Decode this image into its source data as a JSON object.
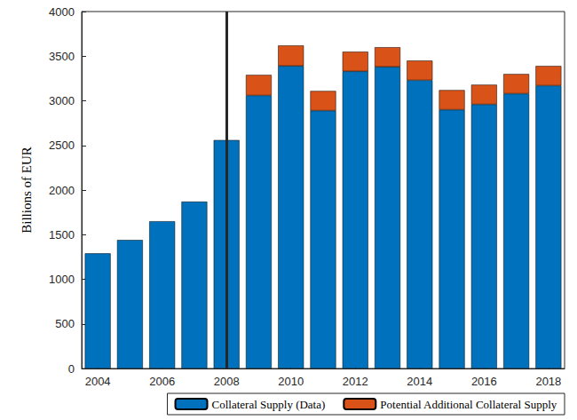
{
  "chart_data": {
    "type": "bar",
    "stacked": true,
    "ylabel": "Billions of EUR",
    "categories": [
      "2004",
      null,
      "2006",
      null,
      "2008",
      null,
      "2010",
      null,
      "2012",
      null,
      "2014",
      null,
      "2016",
      null,
      "2018"
    ],
    "series": [
      {
        "name": "Collateral Supply (Data)",
        "color": "#0072BD",
        "values": [
          1290,
          1440,
          1650,
          1870,
          2560,
          3060,
          3390,
          2890,
          3330,
          3380,
          3230,
          2900,
          2960,
          3080,
          3170
        ]
      },
      {
        "name": "Potential Additional Collateral Supply",
        "color": "#D95319",
        "values": [
          null,
          null,
          null,
          null,
          null,
          230,
          230,
          220,
          220,
          220,
          220,
          220,
          220,
          220,
          220
        ]
      }
    ],
    "vertical_line": "2008",
    "ylim": [
      0,
      4000
    ],
    "yticks": [
      0,
      500,
      1000,
      1500,
      2000,
      2500,
      3000,
      3500,
      4000
    ],
    "grid": false,
    "legend": "lower right"
  }
}
